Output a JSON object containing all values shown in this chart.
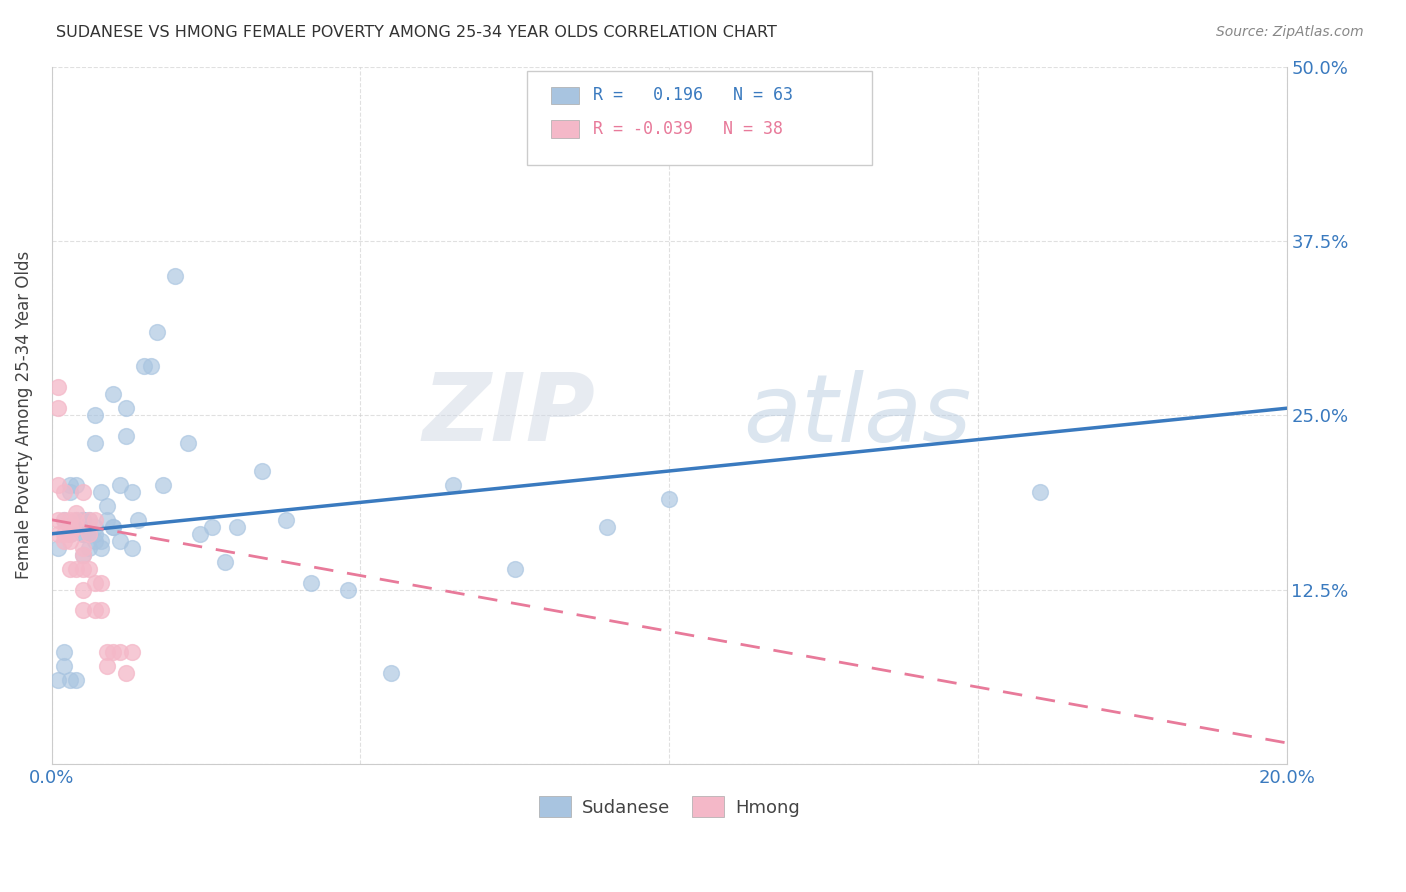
{
  "title": "SUDANESE VS HMONG FEMALE POVERTY AMONG 25-34 YEAR OLDS CORRELATION CHART",
  "source": "Source: ZipAtlas.com",
  "ylabel": "Female Poverty Among 25-34 Year Olds",
  "sudanese_R": 0.196,
  "sudanese_N": 63,
  "hmong_R": -0.039,
  "hmong_N": 38,
  "sudanese_color": "#a8c4e0",
  "hmong_color": "#f4b8c8",
  "sudanese_line_color": "#3a7abf",
  "hmong_line_color": "#e87a9a",
  "grid_color": "#cccccc",
  "background_color": "#ffffff",
  "watermark_zip": "ZIP",
  "watermark_atlas": "atlas",
  "xlim": [
    0.0,
    0.2
  ],
  "ylim": [
    0.0,
    0.5
  ],
  "xticks": [
    0.0,
    0.05,
    0.1,
    0.15,
    0.2
  ],
  "yticks": [
    0.0,
    0.125,
    0.25,
    0.375,
    0.5
  ],
  "sudanese_x": [
    0.001,
    0.001,
    0.002,
    0.002,
    0.002,
    0.003,
    0.003,
    0.003,
    0.003,
    0.003,
    0.004,
    0.004,
    0.004,
    0.004,
    0.005,
    0.005,
    0.005,
    0.005,
    0.005,
    0.005,
    0.006,
    0.006,
    0.006,
    0.007,
    0.007,
    0.007,
    0.007,
    0.007,
    0.008,
    0.008,
    0.008,
    0.009,
    0.009,
    0.01,
    0.01,
    0.01,
    0.011,
    0.011,
    0.012,
    0.012,
    0.013,
    0.013,
    0.014,
    0.015,
    0.016,
    0.017,
    0.018,
    0.02,
    0.022,
    0.024,
    0.026,
    0.028,
    0.03,
    0.034,
    0.038,
    0.042,
    0.048,
    0.055,
    0.065,
    0.075,
    0.09,
    0.1,
    0.16
  ],
  "sudanese_y": [
    0.155,
    0.06,
    0.175,
    0.08,
    0.07,
    0.2,
    0.195,
    0.17,
    0.165,
    0.06,
    0.175,
    0.2,
    0.17,
    0.06,
    0.175,
    0.175,
    0.165,
    0.175,
    0.15,
    0.165,
    0.155,
    0.165,
    0.175,
    0.25,
    0.23,
    0.17,
    0.16,
    0.165,
    0.16,
    0.155,
    0.195,
    0.175,
    0.185,
    0.17,
    0.17,
    0.265,
    0.2,
    0.16,
    0.255,
    0.235,
    0.155,
    0.195,
    0.175,
    0.285,
    0.285,
    0.31,
    0.2,
    0.35,
    0.23,
    0.165,
    0.17,
    0.145,
    0.17,
    0.21,
    0.175,
    0.13,
    0.125,
    0.065,
    0.2,
    0.14,
    0.17,
    0.19,
    0.195
  ],
  "hmong_x": [
    0.001,
    0.001,
    0.001,
    0.001,
    0.001,
    0.002,
    0.002,
    0.002,
    0.002,
    0.003,
    0.003,
    0.003,
    0.003,
    0.003,
    0.004,
    0.004,
    0.004,
    0.004,
    0.005,
    0.005,
    0.005,
    0.005,
    0.005,
    0.005,
    0.006,
    0.006,
    0.006,
    0.007,
    0.007,
    0.007,
    0.008,
    0.008,
    0.009,
    0.009,
    0.01,
    0.011,
    0.012,
    0.013
  ],
  "hmong_y": [
    0.27,
    0.255,
    0.2,
    0.175,
    0.165,
    0.195,
    0.175,
    0.165,
    0.16,
    0.175,
    0.17,
    0.165,
    0.16,
    0.14,
    0.18,
    0.175,
    0.17,
    0.14,
    0.195,
    0.155,
    0.15,
    0.14,
    0.125,
    0.11,
    0.175,
    0.165,
    0.14,
    0.175,
    0.13,
    0.11,
    0.13,
    0.11,
    0.08,
    0.07,
    0.08,
    0.08,
    0.065,
    0.08
  ],
  "sud_line_x0": 0.0,
  "sud_line_y0": 0.165,
  "sud_line_x1": 0.2,
  "sud_line_y1": 0.255,
  "hmong_line_x0": 0.0,
  "hmong_line_y0": 0.175,
  "hmong_line_x1": 0.2,
  "hmong_line_y1": 0.015
}
